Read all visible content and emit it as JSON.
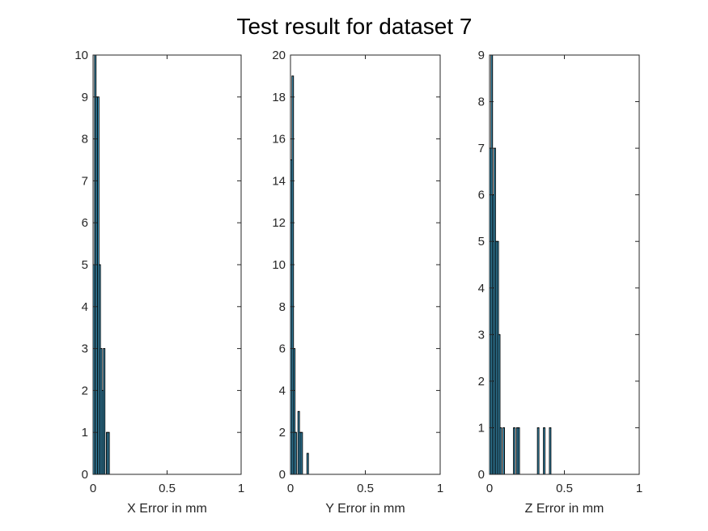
{
  "figure": {
    "title": "Test result for dataset 7",
    "bar_fill": "#4dbeee",
    "bar_edge": "#000000",
    "axes_color": "#262626"
  },
  "chart_data": [
    {
      "type": "bar",
      "xlabel": "X Error in mm",
      "xlim": [
        0,
        1
      ],
      "ylim": [
        0,
        10
      ],
      "xticks": [
        0,
        0.5,
        1
      ],
      "xtick_labels": [
        "0",
        "0.5",
        "1"
      ],
      "yticks": [
        0,
        1,
        2,
        3,
        4,
        5,
        6,
        7,
        8,
        9,
        10
      ],
      "bin_width": 0.01,
      "bins": [
        {
          "x": 0.0,
          "count": 5
        },
        {
          "x": 0.01,
          "count": 10
        },
        {
          "x": 0.02,
          "count": 9
        },
        {
          "x": 0.03,
          "count": 9
        },
        {
          "x": 0.04,
          "count": 5
        },
        {
          "x": 0.05,
          "count": 3
        },
        {
          "x": 0.06,
          "count": 2
        },
        {
          "x": 0.07,
          "count": 3
        },
        {
          "x": 0.09,
          "count": 1
        },
        {
          "x": 0.1,
          "count": 1
        }
      ]
    },
    {
      "type": "bar",
      "xlabel": "Y Error in mm",
      "xlim": [
        0,
        1
      ],
      "ylim": [
        0,
        20
      ],
      "xticks": [
        0,
        0.5,
        1
      ],
      "xtick_labels": [
        "0",
        "0.5",
        "1"
      ],
      "yticks": [
        0,
        2,
        4,
        6,
        8,
        10,
        12,
        14,
        16,
        18,
        20
      ],
      "bin_width": 0.01,
      "bins": [
        {
          "x": 0.0,
          "count": 15
        },
        {
          "x": 0.01,
          "count": 19
        },
        {
          "x": 0.02,
          "count": 6
        },
        {
          "x": 0.03,
          "count": 2
        },
        {
          "x": 0.05,
          "count": 3
        },
        {
          "x": 0.06,
          "count": 2
        },
        {
          "x": 0.07,
          "count": 2
        },
        {
          "x": 0.11,
          "count": 1
        }
      ]
    },
    {
      "type": "bar",
      "xlabel": "Z Error in mm",
      "xlim": [
        0,
        1
      ],
      "ylim": [
        0,
        9
      ],
      "xticks": [
        0,
        0.5,
        1
      ],
      "xtick_labels": [
        "0",
        "0.5",
        "1"
      ],
      "yticks": [
        0,
        1,
        2,
        3,
        4,
        5,
        6,
        7,
        8,
        9
      ],
      "bin_width": 0.01,
      "bins": [
        {
          "x": 0.0,
          "count": 7
        },
        {
          "x": 0.01,
          "count": 9
        },
        {
          "x": 0.02,
          "count": 6
        },
        {
          "x": 0.03,
          "count": 7
        },
        {
          "x": 0.04,
          "count": 5
        },
        {
          "x": 0.05,
          "count": 5
        },
        {
          "x": 0.06,
          "count": 3
        },
        {
          "x": 0.07,
          "count": 1
        },
        {
          "x": 0.09,
          "count": 1
        },
        {
          "x": 0.16,
          "count": 1
        },
        {
          "x": 0.18,
          "count": 1
        },
        {
          "x": 0.19,
          "count": 1
        },
        {
          "x": 0.32,
          "count": 1
        },
        {
          "x": 0.36,
          "count": 1
        },
        {
          "x": 0.4,
          "count": 1
        }
      ]
    }
  ]
}
